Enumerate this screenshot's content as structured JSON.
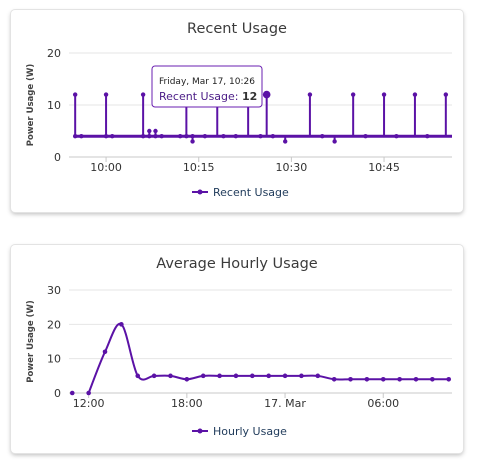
{
  "colors": {
    "series": "#5b12a6",
    "grid": "#e6e6e6",
    "tooltip_border": "#6a1fb0"
  },
  "panels": [
    {
      "title": "Recent Usage",
      "legend": "Recent Usage",
      "tooltip": {
        "title": "Friday, Mar 17, 10:26",
        "label": "Recent Usage:",
        "value": "12"
      }
    },
    {
      "title": "Average Hourly Usage",
      "legend": "Hourly Usage"
    }
  ],
  "chart_data": [
    {
      "type": "line",
      "title": "Recent Usage",
      "ylabel": "Power Usage (W)",
      "xlabel": "",
      "ylim": [
        0,
        20
      ],
      "yticks": [
        "0",
        "10",
        "20"
      ],
      "xticks": [
        "10:00",
        "10:15",
        "10:30",
        "10:45"
      ],
      "grid": true,
      "legend_position": "bottom",
      "series": [
        {
          "name": "Recent Usage",
          "x": [
            "09:55",
            "09:55",
            "09:56",
            "10:00",
            "10:00",
            "10:01",
            "10:06",
            "10:06",
            "10:07",
            "10:07",
            "10:08",
            "10:08",
            "10:09",
            "10:12",
            "10:13",
            "10:13",
            "10:14",
            "10:14",
            "10:16",
            "10:18",
            "10:19",
            "10:21",
            "10:23",
            "10:25",
            "10:26",
            "10:27",
            "10:29",
            "10:33",
            "10:35",
            "10:37",
            "10:40",
            "10:42",
            "10:45",
            "10:47",
            "10:50",
            "10:52",
            "10:55"
          ],
          "y": [
            4,
            12,
            4,
            4,
            12,
            4,
            4,
            12,
            4,
            5,
            4,
            5,
            4,
            4,
            12,
            4,
            3,
            4,
            4,
            12,
            4,
            4,
            12,
            4,
            12,
            4,
            3,
            12,
            4,
            3,
            12,
            4,
            12,
            4,
            12,
            4,
            12
          ]
        }
      ]
    },
    {
      "type": "line",
      "title": "Average Hourly Usage",
      "ylabel": "Power Usage (W)",
      "xlabel": "",
      "ylim": [
        0,
        30
      ],
      "yticks": [
        "0",
        "10",
        "20",
        "30"
      ],
      "xticks": [
        "12:00",
        "18:00",
        "17. Mar",
        "06:00"
      ],
      "grid": true,
      "legend_position": "bottom",
      "series": [
        {
          "name": "Hourly Usage",
          "x": [
            "11:00",
            "12:00",
            "13:00",
            "14:00",
            "15:00",
            "16:00",
            "17:00",
            "18:00",
            "19:00",
            "20:00",
            "21:00",
            "22:00",
            "23:00",
            "00:00",
            "01:00",
            "02:00",
            "03:00",
            "04:00",
            "05:00",
            "06:00",
            "07:00",
            "08:00",
            "09:00",
            "10:00"
          ],
          "y": [
            0,
            0,
            12,
            20,
            5,
            5,
            5,
            4,
            5,
            5,
            5,
            5,
            5,
            5,
            5,
            5,
            4,
            4,
            4,
            4,
            4,
            4,
            4,
            4
          ]
        }
      ]
    }
  ]
}
